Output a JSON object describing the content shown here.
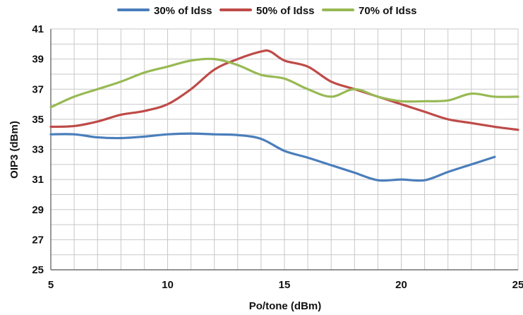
{
  "chart_data": {
    "type": "line",
    "xlabel": "Po/tone (dBm)",
    "ylabel": "OIP3 (dBm)",
    "xlim": [
      5,
      25
    ],
    "ylim": [
      25,
      41
    ],
    "x_ticks": [
      5,
      10,
      15,
      20,
      25
    ],
    "y_ticks": [
      25,
      27,
      29,
      31,
      33,
      35,
      37,
      39,
      41
    ],
    "x_minor_step": 1,
    "y_minor_step": 1,
    "grid": true,
    "legend_position": "top",
    "series": [
      {
        "name": "30% of Idss",
        "color": "#4a7ebb",
        "x": [
          5,
          6,
          7,
          8,
          9,
          10,
          11,
          12,
          13,
          14,
          15,
          16,
          17,
          18,
          19,
          20,
          21,
          22,
          23,
          24
        ],
        "y": [
          34.0,
          34.0,
          33.8,
          33.75,
          33.85,
          34.0,
          34.05,
          34.0,
          33.95,
          33.7,
          32.9,
          32.45,
          31.95,
          31.45,
          30.95,
          31.0,
          30.95,
          31.5,
          32.0,
          32.5
        ]
      },
      {
        "name": "50% of Idss",
        "color": "#be4b48",
        "x": [
          5,
          6,
          7,
          8,
          9,
          10,
          11,
          12,
          13,
          14,
          14.4,
          15,
          16,
          17,
          18,
          19,
          20,
          21,
          22,
          23,
          24,
          25
        ],
        "y": [
          34.5,
          34.55,
          34.85,
          35.3,
          35.55,
          36.0,
          37.0,
          38.3,
          39.0,
          39.5,
          39.5,
          38.9,
          38.5,
          37.5,
          37.0,
          36.5,
          36.0,
          35.5,
          35.0,
          34.75,
          34.5,
          34.3
        ]
      },
      {
        "name": "70% of Idss",
        "color": "#98b954",
        "x": [
          5,
          6,
          7,
          8,
          9,
          10,
          11,
          12,
          13,
          14,
          15,
          16,
          17,
          18,
          19,
          20,
          21,
          22,
          23,
          24,
          25
        ],
        "y": [
          35.8,
          36.5,
          37.0,
          37.5,
          38.1,
          38.5,
          38.9,
          39.0,
          38.6,
          37.95,
          37.7,
          37.0,
          36.5,
          37.0,
          36.5,
          36.2,
          36.2,
          36.25,
          36.7,
          36.5,
          36.5
        ]
      }
    ]
  }
}
